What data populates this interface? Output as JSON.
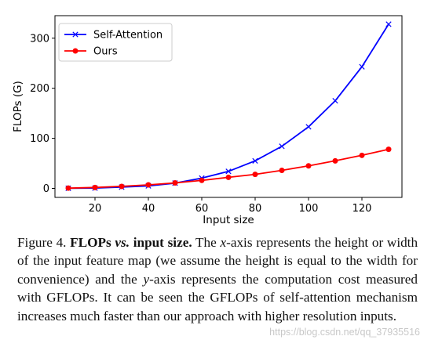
{
  "chart_data": {
    "type": "line",
    "xlabel": "Input size",
    "ylabel": "FLOPs (G)",
    "xlim": [
      5,
      135
    ],
    "ylim": [
      -18,
      345
    ],
    "xticks": [
      20,
      40,
      60,
      80,
      100,
      120
    ],
    "yticks": [
      0,
      100,
      200,
      300
    ],
    "grid": false,
    "legend_position": "top-left",
    "x": [
      10,
      20,
      30,
      40,
      50,
      60,
      70,
      80,
      90,
      100,
      110,
      120,
      130
    ],
    "series": [
      {
        "name": "Self-Attention",
        "color": "#0000ff",
        "marker": "x",
        "values": [
          0.1,
          0.6,
          2.5,
          5.0,
          10.5,
          20.5,
          34,
          55,
          84,
          123,
          175,
          243,
          328
        ]
      },
      {
        "name": "Ours",
        "color": "#ff0000",
        "marker": "circle",
        "values": [
          0.5,
          1.8,
          4,
          7,
          11,
          16,
          22,
          28,
          36,
          45,
          55,
          66,
          78
        ]
      }
    ]
  },
  "caption": {
    "fig_label": "Figure 4.",
    "title_bold_1": "FLOPs",
    "title_vs": "vs.",
    "title_bold_2": "input size",
    "text_1": "The",
    "var_x": "x",
    "text_2": "-axis represents the height or width of the input feature map (we assume the height is equal to the width for convenience) and the",
    "var_y": "y",
    "text_3": "-axis represents the computation cost measured with GFLOPs. It can be seen the GFLOPs of self-attention mechanism increases much faster than our approach with higher resolution inputs."
  },
  "watermark": "https://blog.csdn.net/qq_37935516"
}
